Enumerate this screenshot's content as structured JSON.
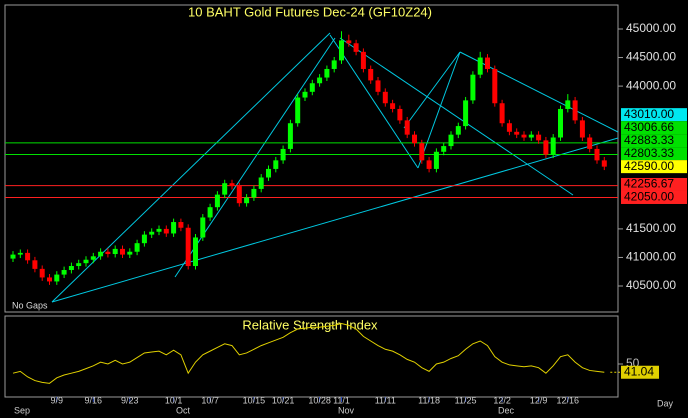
{
  "chart_data": [
    {
      "type": "candlestick",
      "title": "10 BAHT  Gold Futures Dec-24  (GF10Z24)",
      "annotation": "No Gaps",
      "x_unit": "Day",
      "months": [
        "Sep",
        "Oct",
        "Nov",
        "Dec"
      ],
      "up_color": "#00ff00",
      "down_color": "#ff0000",
      "ylim": [
        40045,
        45420
      ],
      "yticks": [
        {
          "value": 45000,
          "label": "45000.00"
        },
        {
          "value": 44500,
          "label": "44500.00"
        },
        {
          "value": 44000,
          "label": "44000.00"
        },
        {
          "value": 41500,
          "label": "41500.00"
        },
        {
          "value": 41000,
          "label": "41000.00"
        },
        {
          "value": 40500,
          "label": "40500.00"
        }
      ],
      "levels": [
        {
          "value": 43010,
          "label": "43010.00",
          "color": "#00e8f0",
          "show_line": false
        },
        {
          "value": 43006.66,
          "label": "43006.66",
          "color": "#00e000",
          "show_line": true
        },
        {
          "value": 42883.33,
          "label": "42883.33",
          "color": "#00e000",
          "show_line": false
        },
        {
          "value": 42803.33,
          "label": "42803.33",
          "color": "#00e000",
          "show_line": true
        },
        {
          "value": 42590,
          "label": "42590.00",
          "color": "#ffff00",
          "show_line": false
        },
        {
          "value": 42256.67,
          "label": "42256.67",
          "color": "#ff2020",
          "show_line": true
        },
        {
          "value": 42050,
          "label": "42050.00",
          "color": "#ff2020",
          "show_line": true
        }
      ],
      "categories": [
        null,
        null,
        null,
        null,
        null,
        null,
        "9/9",
        null,
        null,
        null,
        null,
        "9/16",
        null,
        null,
        null,
        null,
        "9/23",
        null,
        null,
        null,
        null,
        null,
        "10/1",
        null,
        null,
        null,
        null,
        "10/7",
        null,
        null,
        null,
        null,
        null,
        "10/15",
        null,
        null,
        null,
        "10/21",
        null,
        null,
        null,
        null,
        "10/28",
        null,
        null,
        "11/1",
        null,
        null,
        null,
        null,
        null,
        "11/11",
        null,
        null,
        null,
        null,
        null,
        "11/18",
        null,
        null,
        null,
        null,
        "11/25",
        null,
        null,
        null,
        null,
        "12/2",
        null,
        null,
        null,
        null,
        "12/9",
        null,
        null,
        null,
        "12/16",
        null,
        null,
        null,
        null,
        null
      ],
      "open": [
        40980,
        41050,
        41080,
        40950,
        40800,
        40650,
        40580,
        40700,
        40780,
        40850,
        40900,
        40960,
        41020,
        41100,
        41060,
        41150,
        41050,
        41100,
        41250,
        41400,
        41450,
        41500,
        41420,
        41620,
        41520,
        40850,
        41350,
        41700,
        41880,
        42100,
        42300,
        42250,
        41950,
        42050,
        42200,
        42400,
        42550,
        42700,
        42900,
        43350,
        43800,
        43900,
        44050,
        44150,
        44300,
        44450,
        44800,
        44750,
        44600,
        44300,
        44100,
        43900,
        43700,
        43600,
        43400,
        43150,
        43000,
        42700,
        42550,
        42850,
        42950,
        43150,
        43300,
        43750,
        44200,
        44500,
        44300,
        43700,
        43350,
        43200,
        43150,
        43100,
        43150,
        43050,
        42800,
        43100,
        43600,
        43750,
        43400,
        43100,
        42900,
        42700
      ],
      "high": [
        41110,
        41140,
        41140,
        41010,
        40860,
        40710,
        40760,
        40840,
        40910,
        40960,
        41020,
        41080,
        41160,
        41160,
        41210,
        41210,
        41160,
        41310,
        41460,
        41510,
        41560,
        41560,
        41680,
        41680,
        41580,
        41410,
        41760,
        41940,
        42160,
        42360,
        42360,
        42310,
        42110,
        42260,
        42460,
        42610,
        42760,
        42960,
        43410,
        43860,
        43960,
        44110,
        44210,
        44360,
        44510,
        44960,
        44900,
        44810,
        44660,
        44360,
        44160,
        43960,
        43760,
        43660,
        43460,
        43210,
        43060,
        42760,
        42910,
        43010,
        43210,
        43360,
        43810,
        44260,
        44600,
        44560,
        44360,
        43760,
        43410,
        43260,
        43210,
        43210,
        43210,
        43110,
        43160,
        43660,
        43860,
        43810,
        43460,
        43160,
        42960,
        42760
      ],
      "low": [
        40920,
        40990,
        40890,
        40740,
        40590,
        40520,
        40520,
        40640,
        40720,
        40790,
        40840,
        40900,
        40960,
        41000,
        41000,
        40990,
        40990,
        41040,
        41190,
        41340,
        41390,
        41360,
        41360,
        41460,
        40790,
        40790,
        41290,
        41640,
        41820,
        42040,
        42190,
        41890,
        41890,
        41990,
        42140,
        42340,
        42490,
        42640,
        42840,
        43290,
        43740,
        43840,
        43990,
        44090,
        44240,
        44390,
        44690,
        44540,
        44240,
        44040,
        43840,
        43640,
        43540,
        43340,
        43090,
        42940,
        42640,
        42490,
        42490,
        42790,
        42890,
        43090,
        43240,
        43690,
        44140,
        44240,
        43640,
        43290,
        43140,
        43090,
        43040,
        43040,
        42990,
        42740,
        42740,
        43040,
        43540,
        43340,
        43040,
        42840,
        42640,
        42530
      ],
      "close": [
        41050,
        41080,
        40950,
        40800,
        40650,
        40580,
        40700,
        40780,
        40850,
        40900,
        40960,
        41020,
        41100,
        41060,
        41150,
        41050,
        41100,
        41250,
        41400,
        41450,
        41500,
        41420,
        41620,
        41520,
        40850,
        41350,
        41700,
        41880,
        42100,
        42300,
        42250,
        41950,
        42050,
        42200,
        42400,
        42550,
        42700,
        42900,
        43350,
        43800,
        43900,
        44050,
        44150,
        44300,
        44450,
        44800,
        44750,
        44600,
        44300,
        44100,
        43900,
        43700,
        43600,
        43400,
        43150,
        43000,
        42700,
        42550,
        42850,
        42950,
        43150,
        43300,
        43750,
        44200,
        44500,
        44300,
        43700,
        43350,
        43200,
        43150,
        43100,
        43150,
        43050,
        42800,
        43100,
        43600,
        43750,
        43400,
        43100,
        42900,
        42700,
        42590
      ]
    },
    {
      "type": "line",
      "title": "Relative Strength Index",
      "ylim": [
        0,
        100
      ],
      "yticks": [
        50
      ],
      "series": [
        {
          "name": "RSI",
          "color": "#e0d000",
          "values": [
            40,
            42,
            36,
            32,
            30,
            29,
            35,
            38,
            40,
            42,
            45,
            48,
            52,
            50,
            54,
            50,
            52,
            57,
            62,
            63,
            64,
            60,
            65,
            60,
            40,
            52,
            60,
            64,
            68,
            72,
            70,
            60,
            62,
            66,
            70,
            73,
            76,
            79,
            84,
            88,
            89,
            90,
            90,
            91,
            92,
            94,
            92,
            88,
            80,
            75,
            70,
            66,
            64,
            60,
            55,
            52,
            46,
            42,
            50,
            52,
            56,
            59,
            66,
            72,
            75,
            70,
            58,
            52,
            49,
            48,
            47,
            48,
            46,
            40,
            48,
            58,
            60,
            52,
            46,
            43,
            42,
            41.04
          ]
        }
      ]
    }
  ]
}
